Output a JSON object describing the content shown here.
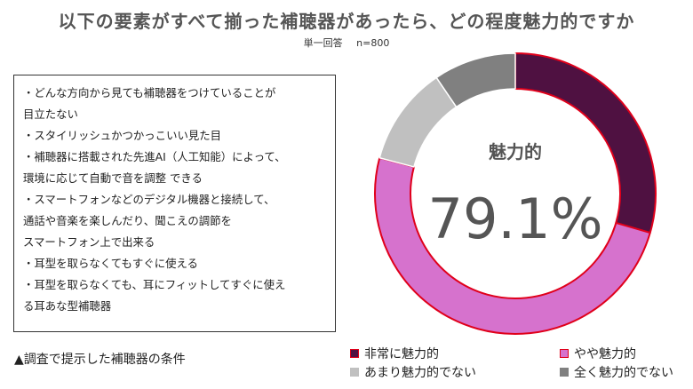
{
  "title": "以下の要素がすべて揃った補聴器があったら、どの程度魅力的ですか",
  "subtitle": {
    "type": "単一回答",
    "n": "n=800"
  },
  "conditions": [
    "・どんな方向から見ても補聴器をつけていることが",
    "目立たない",
    "・スタイリッシュかつかっこいい見た目",
    "・補聴器に搭載された先進AI（人工知能）によって、",
    "環境に応じて自動で音を調整 できる",
    "・スマートフォンなどのデジタル機器と接続して、",
    "通話や音楽を楽しんだり、聞こえの調節を",
    "スマートフォン上で出来る",
    "・耳型を取らなくてもすぐに使える",
    "・耳型を取らなくても、耳にフィットしてすぐに使え",
    "る耳あな型補聴器"
  ],
  "caption": "▲調査で提示した補聴器の条件",
  "chart_data": {
    "type": "pie",
    "style": "donut",
    "center_label": "魅力的",
    "center_value": "79.1%",
    "categories": [
      "非常に魅力的",
      "やや魅力的",
      "あまり魅力的でない",
      "全く魅力的でない"
    ],
    "values": [
      29.5,
      49.6,
      11.4,
      9.5
    ],
    "colors": [
      "#4f1141",
      "#d672cd",
      "#c0c0c0",
      "#808080"
    ],
    "highlight_stroke": "#e0001b",
    "legend_position": "bottom"
  }
}
